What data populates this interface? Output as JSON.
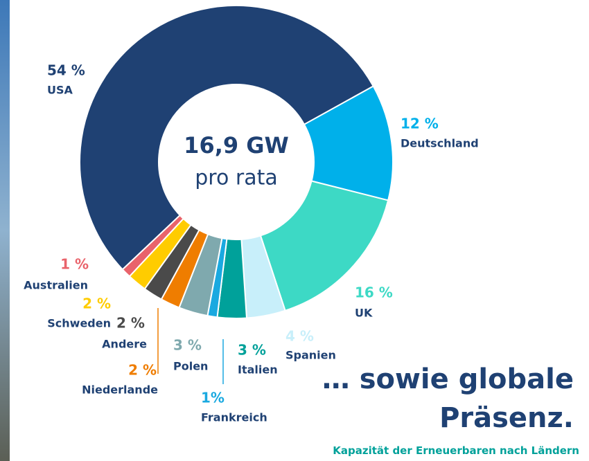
{
  "chart_data": {
    "type": "pie",
    "center_label": "16,9 GW",
    "center_sublabel": "pro rata",
    "title": "… sowie globale Präsenz.",
    "subtitle": "Kapazität der Erneuerbaren nach Ländern",
    "categories": [
      "Deutschland",
      "UK",
      "Spanien",
      "Italien",
      "Frankreich",
      "Polen",
      "Niederlande",
      "Andere",
      "Schweden",
      "Australien",
      "USA"
    ],
    "values": [
      12,
      16,
      4,
      3,
      1,
      3,
      2,
      2,
      2,
      1,
      54
    ],
    "value_labels": [
      "12 %",
      "16 %",
      "4 %",
      "3 %",
      "1%",
      "3 %",
      "2 %",
      "2 %",
      "2 %",
      "1 %",
      "54 %"
    ],
    "colors": [
      "#00b0ea",
      "#3dd9c5",
      "#c8effa",
      "#00a19a",
      "#1aa9e0",
      "#7fa9ae",
      "#ef7d00",
      "#4a4a4a",
      "#ffcc00",
      "#e9636b",
      "#1f4173"
    ]
  }
}
